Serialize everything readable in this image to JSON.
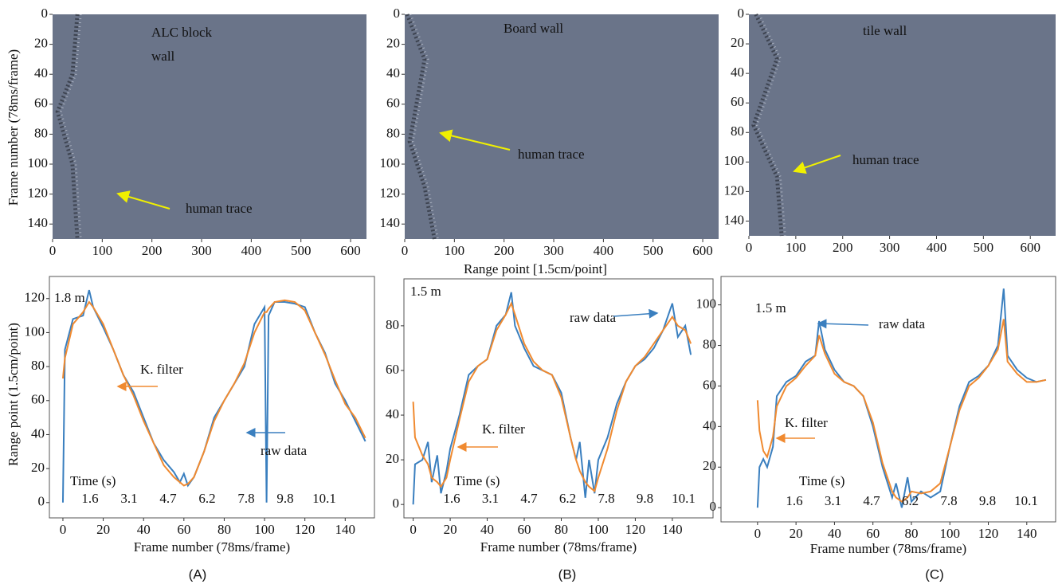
{
  "chart_data": [
    {
      "type": "heatmap",
      "title": [
        "ALC block",
        "wall"
      ],
      "annotation": "human trace",
      "ylabel": "Frame number (78ms/frame)",
      "xlim": [
        0,
        632
      ],
      "ylim": [
        0,
        150
      ],
      "xticks": [
        0,
        100,
        200,
        300,
        400,
        500,
        600
      ],
      "yticks": [
        0,
        20,
        40,
        60,
        80,
        100,
        120,
        140
      ]
    },
    {
      "type": "heatmap",
      "title": [
        "Board wall"
      ],
      "annotation": "human trace",
      "xlabel": "Range point [1.5cm/point]",
      "xlim": [
        0,
        632
      ],
      "ylim": [
        0,
        150
      ],
      "xticks": [
        0,
        100,
        200,
        300,
        400,
        500,
        600
      ],
      "yticks": [
        0,
        20,
        40,
        60,
        80,
        100,
        120,
        140
      ]
    },
    {
      "type": "heatmap",
      "title": [
        "tile wall"
      ],
      "annotation": "human trace",
      "xlim": [
        0,
        654
      ],
      "ylim": [
        0,
        150
      ],
      "xticks": [
        0,
        100,
        200,
        300,
        400,
        500,
        600
      ],
      "yticks": [
        0,
        20,
        40,
        60,
        80,
        100,
        120,
        140
      ]
    },
    {
      "type": "line",
      "panel_label": "(A)",
      "distance_label": "1.8 m",
      "time_axis_title": "Time (s)",
      "time_labels": [
        "1.6",
        "3.1",
        "4.7",
        "6.2",
        "7.8",
        "9.8",
        "10.1"
      ],
      "xlabel": "Frame number (78ms/frame)",
      "ylabel": "Range point (1.5cm/point)",
      "xlim": [
        -6.7,
        154.5
      ],
      "ylim": [
        -9,
        133
      ],
      "xticks": [
        0,
        20,
        40,
        60,
        80,
        100,
        120,
        140
      ],
      "yticks": [
        0,
        20,
        40,
        60,
        80,
        100,
        120
      ],
      "x": [
        0,
        1,
        5,
        10,
        13,
        15,
        20,
        25,
        30,
        35,
        40,
        45,
        50,
        55,
        58,
        60,
        62,
        65,
        70,
        75,
        80,
        85,
        90,
        95,
        100,
        101,
        102,
        105,
        110,
        115,
        120,
        125,
        130,
        135,
        140,
        145,
        150
      ],
      "series": [
        {
          "name": "raw data",
          "color": "#3a7fbf",
          "values": [
            0,
            90,
            108,
            110,
            125,
            115,
            103,
            90,
            75,
            65,
            50,
            35,
            25,
            18,
            12,
            17,
            10,
            15,
            30,
            50,
            60,
            70,
            80,
            105,
            115,
            0,
            110,
            118,
            118,
            117,
            115,
            100,
            88,
            70,
            60,
            48,
            36
          ]
        },
        {
          "name": "K. filter",
          "color": "#f08a30",
          "values": [
            73,
            85,
            105,
            112,
            118,
            115,
            105,
            90,
            75,
            63,
            48,
            35,
            22,
            15,
            12,
            10,
            11,
            15,
            30,
            48,
            60,
            70,
            82,
            100,
            112,
            112,
            114,
            118,
            119,
            118,
            113,
            100,
            87,
            72,
            58,
            50,
            38
          ]
        }
      ]
    },
    {
      "type": "line",
      "panel_label": "(B)",
      "distance_label": "1.5 m",
      "time_axis_title": "Time (s)",
      "time_labels": [
        "1.6",
        "3.1",
        "4.7",
        "6.2",
        "7.8",
        "9.8",
        "10.1"
      ],
      "xlabel": "Frame number (78ms/frame)",
      "xlim": [
        -5,
        162
      ],
      "ylim": [
        -6,
        101
      ],
      "xticks": [
        0,
        20,
        40,
        60,
        80,
        100,
        120,
        140
      ],
      "yticks": [
        0,
        20,
        40,
        60,
        80
      ],
      "x": [
        0,
        1,
        5,
        8,
        10,
        13,
        15,
        18,
        20,
        25,
        30,
        35,
        40,
        45,
        50,
        53,
        55,
        60,
        65,
        70,
        75,
        80,
        85,
        88,
        90,
        93,
        95,
        98,
        100,
        105,
        110,
        115,
        120,
        125,
        130,
        135,
        140,
        143,
        147,
        150
      ],
      "series": [
        {
          "name": "raw data",
          "color": "#3a7fbf",
          "values": [
            0,
            18,
            20,
            28,
            10,
            22,
            5,
            15,
            25,
            40,
            58,
            62,
            65,
            80,
            85,
            95,
            80,
            70,
            62,
            60,
            58,
            50,
            30,
            20,
            28,
            3,
            20,
            5,
            20,
            30,
            45,
            55,
            62,
            65,
            70,
            78,
            90,
            75,
            80,
            67
          ]
        },
        {
          "name": "K. filter",
          "color": "#f08a30",
          "values": [
            46,
            30,
            22,
            18,
            12,
            10,
            8,
            12,
            20,
            38,
            55,
            62,
            65,
            78,
            85,
            90,
            85,
            72,
            64,
            60,
            58,
            48,
            30,
            20,
            15,
            10,
            8,
            6,
            12,
            25,
            42,
            55,
            62,
            66,
            72,
            78,
            84,
            80,
            78,
            72
          ]
        }
      ]
    },
    {
      "type": "line",
      "panel_label": "(C)",
      "distance_label": "1.5 m",
      "time_axis_title": "Time (s)",
      "time_labels": [
        "1.6",
        "3.1",
        "4.7",
        "6.2",
        "7.8",
        "9.8",
        "10.1"
      ],
      "xlabel": "Frame number (78ms/frame)",
      "xlim": [
        -19,
        155
      ],
      "ylim": [
        -7,
        114
      ],
      "xticks": [
        0,
        20,
        40,
        60,
        80,
        100,
        120,
        140
      ],
      "yticks": [
        0,
        20,
        40,
        60,
        80,
        100
      ],
      "x": [
        0,
        1,
        3,
        5,
        8,
        10,
        15,
        20,
        25,
        30,
        32,
        35,
        40,
        45,
        50,
        55,
        60,
        65,
        70,
        72,
        75,
        78,
        80,
        85,
        90,
        95,
        100,
        105,
        110,
        115,
        120,
        125,
        128,
        130,
        135,
        140,
        145,
        150
      ],
      "series": [
        {
          "name": "raw data",
          "color": "#3a7fbf",
          "values": [
            0,
            20,
            24,
            20,
            30,
            55,
            62,
            65,
            72,
            75,
            92,
            78,
            68,
            62,
            60,
            55,
            40,
            20,
            5,
            12,
            0,
            15,
            3,
            8,
            5,
            8,
            30,
            50,
            62,
            65,
            70,
            80,
            108,
            75,
            68,
            64,
            62,
            63
          ]
        },
        {
          "name": "K. filter",
          "color": "#f08a30",
          "values": [
            53,
            38,
            28,
            25,
            35,
            50,
            60,
            64,
            70,
            75,
            85,
            76,
            66,
            62,
            60,
            55,
            42,
            22,
            8,
            5,
            3,
            5,
            8,
            7,
            8,
            12,
            30,
            48,
            60,
            64,
            70,
            78,
            93,
            72,
            66,
            62,
            62,
            63
          ]
        }
      ]
    }
  ]
}
